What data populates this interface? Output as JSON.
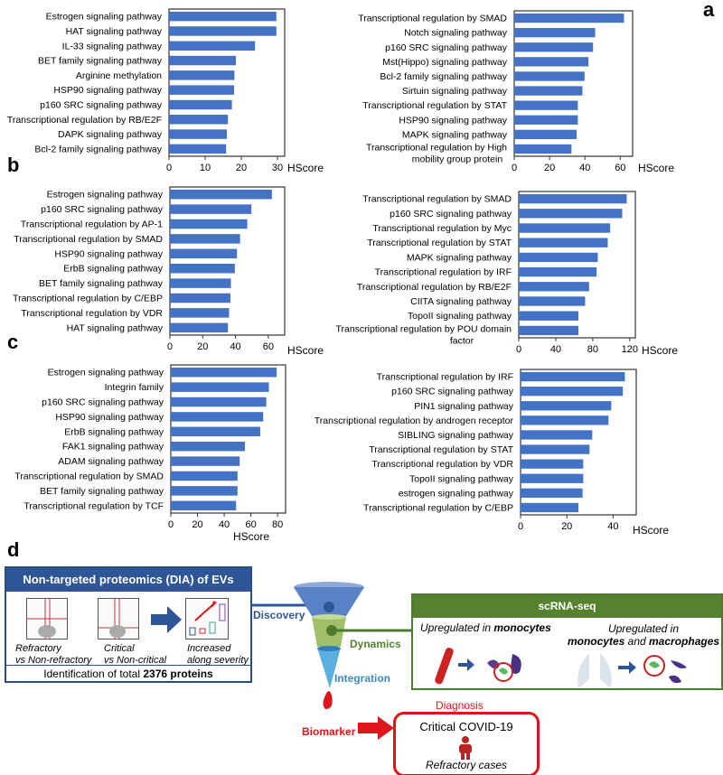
{
  "panels": {
    "a": "a",
    "b": "b",
    "c": "c",
    "d": "d"
  },
  "chart_data": [
    {
      "id": "a-left",
      "type": "bar",
      "orientation": "horizontal",
      "xlabel": "HScore",
      "xlim": [
        0,
        32
      ],
      "xticks": [
        0,
        10,
        20,
        30
      ],
      "bar_color": "#4472c4",
      "categories": [
        "Estrogen signaling pathway",
        "HAT signaling pathway",
        "IL-33 signaling pathway",
        "BET family signaling pathway",
        "Arginine methylation",
        "HSP90 signaling pathway",
        "p160 SRC signaling pathway",
        "Transcriptional regulation by RB/E2F",
        "DAPK signaling pathway",
        "Bcl-2 family signaling pathway"
      ],
      "values": [
        29.7,
        29.7,
        23.8,
        18.5,
        18.1,
        18.0,
        17.4,
        16.3,
        16.0,
        15.8
      ]
    },
    {
      "id": "a-right",
      "type": "bar",
      "orientation": "horizontal",
      "xlabel": "HScore",
      "xlim": [
        0,
        67
      ],
      "xticks": [
        0,
        20,
        40,
        60
      ],
      "bar_color": "#4472c4",
      "categories": [
        "Transcriptional regulation by SMAD",
        "Notch signaling pathway",
        "p160 SRC signaling pathway",
        "Mst(Hippo) signaling pathway",
        "Bcl-2 family signaling pathway",
        "Sirtuin signaling pathway",
        "Transcriptional regulation by STAT",
        "HSP90 signaling pathway",
        "MAPK signaling pathway",
        "Transcriptional regulation by High mobility group protein"
      ],
      "values": [
        62.1,
        45.8,
        44.6,
        42.0,
        39.8,
        38.6,
        36.0,
        36.0,
        35.3,
        32.4
      ]
    },
    {
      "id": "b-left",
      "type": "bar",
      "orientation": "horizontal",
      "xlabel": "HScore",
      "xlim": [
        0,
        70
      ],
      "xticks": [
        0,
        20,
        40,
        60
      ],
      "bar_color": "#4472c4",
      "categories": [
        "Estrogen signaling pathway",
        "p160 SRC signaling pathway",
        "Transcriptional regulation by AP-1",
        "Transcriptional regulation by SMAD",
        "HSP90 signaling pathway",
        "ErbB signaling pathway",
        "BET family signaling pathway",
        "Transcriptional regulation by C/EBP",
        "Transcriptional regulation by VDR",
        "HAT signaling pathway"
      ],
      "values": [
        62.2,
        49.7,
        47.2,
        42.8,
        40.9,
        39.6,
        37.2,
        36.9,
        36.1,
        35.4
      ]
    },
    {
      "id": "b-right",
      "type": "bar",
      "orientation": "horizontal",
      "xlabel": "HScore",
      "xlim": [
        0,
        126
      ],
      "xticks": [
        0,
        40,
        80,
        120
      ],
      "bar_color": "#4472c4",
      "categories": [
        "Transcriptional regulation by SMAD",
        "p160 SRC signaling pathway",
        "Transcriptional regulation by Myc",
        "Transcriptional regulation by STAT",
        "MAPK signaling pathway",
        "Transcriptional regulation by IRF",
        "Transcriptional regulation by RB/E2F",
        "CIITA signaling pathway",
        "TopoII signaling pathway",
        "Transcriptional regulation by POU domain factor"
      ],
      "values": [
        116.7,
        111.8,
        98.8,
        96.2,
        85.4,
        84.1,
        76.0,
        71.7,
        64.5,
        64.5
      ]
    },
    {
      "id": "c-left",
      "type": "bar",
      "orientation": "horizontal",
      "xlabel": "HScore",
      "xlim": [
        0,
        86
      ],
      "xticks": [
        0,
        20,
        40,
        60,
        80
      ],
      "bar_color": "#4472c4",
      "categories": [
        "Estrogen signaling pathway",
        "Integrin family",
        "p160 SRC signaling pathway",
        "HSP90 signaling pathway",
        "ErbB signaling pathway",
        "FAK1 signaling pathway",
        "ADAM signaling pathway",
        "Transcriptional regulation by SMAD",
        "BET family signaling pathway",
        "Transcriptional regulation by TCF"
      ],
      "values": [
        79.3,
        73.5,
        71.5,
        69.2,
        67.0,
        55.5,
        51.6,
        50.0,
        50.0,
        48.9
      ]
    },
    {
      "id": "c-right",
      "type": "bar",
      "orientation": "horizontal",
      "xlabel": "HScore",
      "xlim": [
        0,
        50
      ],
      "xticks": [
        0,
        20,
        40
      ],
      "bar_color": "#4472c4",
      "categories": [
        "Transcriptional regulation by IRF",
        "p160 SRC signaling pathway",
        "PIN1 signaling pathway",
        "Transcriptional regulation by androgen receptor",
        "SIBLING signaling pathway",
        "Transcriptional regulation by STAT",
        "Transcriptional regulation by VDR",
        "TopoII signaling pathway",
        "estrogen signaling pathway",
        "Transcriptional regulation by C/EBP"
      ],
      "values": [
        45.1,
        44.2,
        39.2,
        38.0,
        31.0,
        29.8,
        27.1,
        27.1,
        26.8,
        25.0
      ]
    }
  ],
  "diagram": {
    "proteomics": {
      "title": "Non-targeted proteomics (DIA) of EVs",
      "plot1_label1": "Refractory",
      "plot1_label2": "vs Non-refractory",
      "plot2_label1": "Critical",
      "plot2_label2": "vs Non-critical",
      "plot3_label1": "Increased",
      "plot3_label2": "along severity",
      "ident_prefix": "Identification of total ",
      "ident_bold": "2376 proteins"
    },
    "funnel": {
      "discovery": "Discovery",
      "dynamics": "Dynamics",
      "integration": "Integration",
      "biomarker": "Biomarker"
    },
    "scrna": {
      "title": "scRNA-seq",
      "left_prefix": "Upregulated in ",
      "left_bold": "monocytes",
      "right_line1": "Upregulated in",
      "right_bold1": "monocytes",
      "right_mid": " and ",
      "right_bold2": "macrophages"
    },
    "diagnosis": {
      "label": "Diagnosis",
      "line1": "Critical COVID-19",
      "line2": "Refractory cases"
    },
    "colors": {
      "blue": "#2e5597",
      "green": "#56822f",
      "red": "#e0141b",
      "light_blue": "#4a90c8"
    }
  }
}
